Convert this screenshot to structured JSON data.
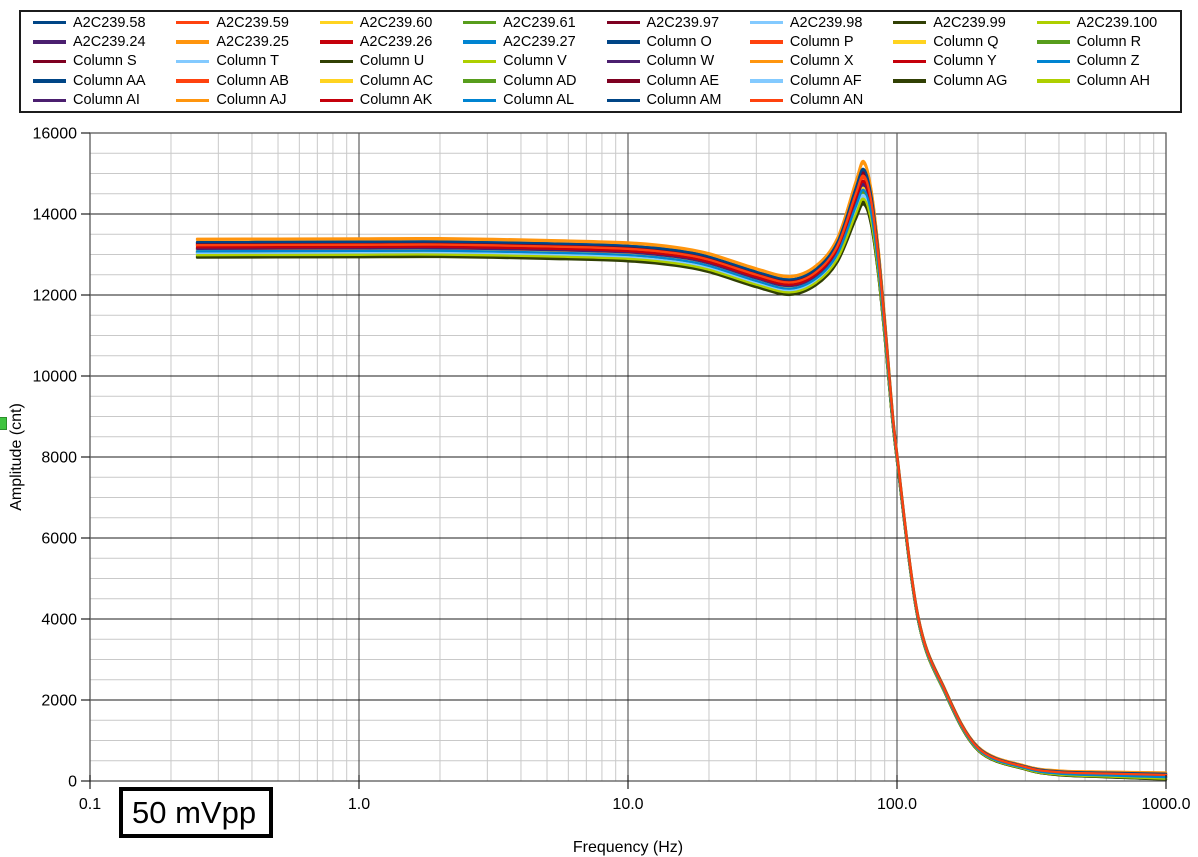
{
  "chart_data": {
    "type": "line",
    "title": "",
    "xlabel": "Frequency (Hz)",
    "ylabel": "Amplitude (cnt)",
    "annotation": "50 mVpp",
    "x_scale": "log",
    "xlim": [
      0.1,
      1000.0
    ],
    "x_tick_labels": [
      "0.1",
      "1.0",
      "10.0",
      "100.0",
      "1000.0"
    ],
    "ylim": [
      0,
      16000
    ],
    "y_major_step": 2000,
    "y_minor_step": 500,
    "y_tick_labels": [
      "0",
      "2000",
      "4000",
      "6000",
      "8000",
      "10000",
      "12000",
      "14000",
      "16000"
    ],
    "grid": "major+minor",
    "legend_position": "top",
    "legend_columns": 8,
    "x": [
      0.25,
      0.5,
      1,
      2,
      5,
      10,
      15,
      20,
      30,
      40,
      50,
      60,
      70,
      75,
      80,
      85,
      90,
      95,
      100,
      120,
      150,
      200,
      300,
      400,
      600,
      1000
    ],
    "base_values": [
      13150,
      13155,
      13160,
      13165,
      13120,
      13060,
      12950,
      12790,
      12420,
      12230,
      12480,
      13100,
      14300,
      14760,
      14200,
      12900,
      11200,
      9400,
      8000,
      4000,
      2250,
      800,
      330,
      200,
      160,
      120
    ],
    "spread_factor": [
      1,
      1,
      1,
      1,
      1,
      1,
      1,
      1,
      1,
      1,
      1.05,
      1.3,
      2.0,
      2.3,
      2.0,
      1.6,
      1.2,
      0.8,
      0.5,
      0.3,
      0.25,
      0.22,
      0.2,
      0.25,
      0.3,
      0.38
    ],
    "half_spread": 225,
    "values_rule": "series value at point k = base_values[k] + offset * half_spread * spread_factor[k]",
    "palette_cycle": [
      "#004586",
      "#FF420E",
      "#FFD320",
      "#579D1C",
      "#7E0021",
      "#83CAFF",
      "#314004",
      "#AECF00",
      "#4B1F6F",
      "#FF950E",
      "#C5000B",
      "#0084D1"
    ],
    "series": [
      {
        "name": "A2C239.58",
        "color": "#004586",
        "offset": 0.56
      },
      {
        "name": "A2C239.59",
        "color": "#FF420E",
        "offset": 0.24
      },
      {
        "name": "A2C239.60",
        "color": "#FFD320",
        "offset": -0.34
      },
      {
        "name": "A2C239.61",
        "color": "#579D1C",
        "offset": -0.51
      },
      {
        "name": "A2C239.97",
        "color": "#7E0021",
        "offset": 0.39
      },
      {
        "name": "A2C239.98",
        "color": "#83CAFF",
        "offset": -0.68
      },
      {
        "name": "A2C239.99",
        "color": "#314004",
        "offset": -1.01
      },
      {
        "name": "A2C239.100",
        "color": "#AECF00",
        "offset": -0.86
      },
      {
        "name": "A2C239.24",
        "color": "#4B1F6F",
        "offset": -0.16
      },
      {
        "name": "A2C239.25",
        "color": "#FF950E",
        "offset": 0.94
      },
      {
        "name": "A2C239.26",
        "color": "#C5000B",
        "offset": -0.01
      },
      {
        "name": "A2C239.27",
        "color": "#0084D1",
        "offset": -0.44
      },
      {
        "name": "Column O",
        "color": "#004586",
        "offset": 0.62
      },
      {
        "name": "Column P",
        "color": "#FF420E",
        "offset": 0.3
      },
      {
        "name": "Column Q",
        "color": "#FFD320",
        "offset": -0.28
      },
      {
        "name": "Column R",
        "color": "#579D1C",
        "offset": -0.45
      },
      {
        "name": "Column S",
        "color": "#7E0021",
        "offset": 0.45
      },
      {
        "name": "Column T",
        "color": "#83CAFF",
        "offset": -0.62
      },
      {
        "name": "Column U",
        "color": "#314004",
        "offset": -0.95
      },
      {
        "name": "Column V",
        "color": "#AECF00",
        "offset": -0.8
      },
      {
        "name": "Column W",
        "color": "#4B1F6F",
        "offset": -0.1
      },
      {
        "name": "Column X",
        "color": "#FF950E",
        "offset": 1.0
      },
      {
        "name": "Column Y",
        "color": "#C5000B",
        "offset": 0.05
      },
      {
        "name": "Column Z",
        "color": "#0084D1",
        "offset": -0.38
      },
      {
        "name": "Column AA",
        "color": "#004586",
        "offset": 0.68
      },
      {
        "name": "Column AB",
        "color": "#FF420E",
        "offset": 0.36
      },
      {
        "name": "Column AC",
        "color": "#FFD320",
        "offset": -0.22
      },
      {
        "name": "Column AD",
        "color": "#579D1C",
        "offset": -0.39
      },
      {
        "name": "Column AE",
        "color": "#7E0021",
        "offset": 0.51
      },
      {
        "name": "Column AF",
        "color": "#83CAFF",
        "offset": -0.56
      },
      {
        "name": "Column AG",
        "color": "#314004",
        "offset": -0.89
      },
      {
        "name": "Column AH",
        "color": "#AECF00",
        "offset": -0.74
      },
      {
        "name": "Column AI",
        "color": "#4B1F6F",
        "offset": -0.04
      },
      {
        "name": "Column AJ",
        "color": "#FF950E",
        "offset": 1.06
      },
      {
        "name": "Column AK",
        "color": "#C5000B",
        "offset": 0.11
      },
      {
        "name": "Column AL",
        "color": "#0084D1",
        "offset": -0.32
      },
      {
        "name": "Column AM",
        "color": "#004586",
        "offset": 0.68
      },
      {
        "name": "Column AN",
        "color": "#FF420E",
        "offset": 0.36
      }
    ]
  },
  "colors": {
    "background": "#ffffff",
    "plot_border": "#595959",
    "grid_major_h": "#1e1e1e",
    "grid_major_v": "#3f3f3f",
    "grid_minor": "#c9c9c9",
    "text": "#000000",
    "selection_handle": "#3fc43f"
  }
}
